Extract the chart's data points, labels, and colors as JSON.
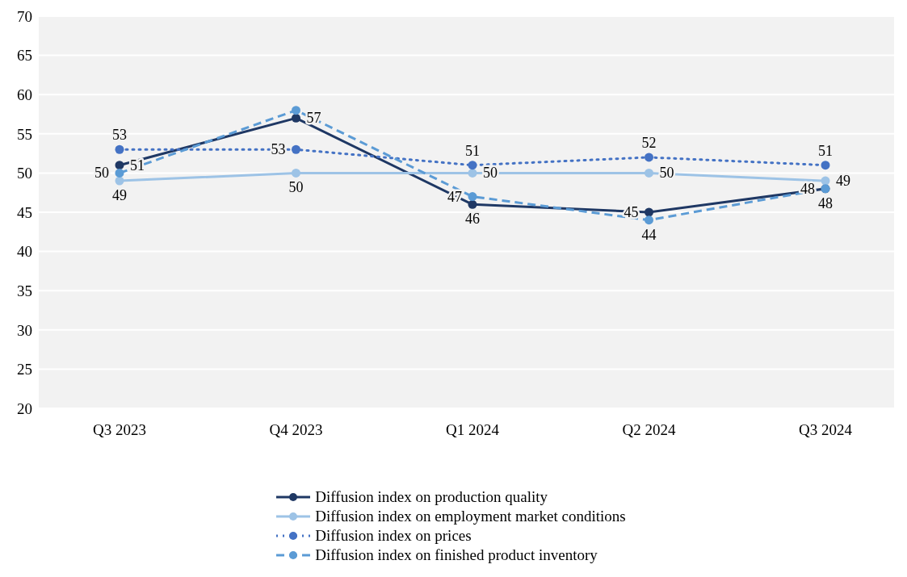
{
  "chart_data": {
    "type": "line",
    "categories": [
      "Q3 2023",
      "Q4 2023",
      "Q1 2024",
      "Q2 2024",
      "Q3 2024"
    ],
    "ylim": [
      20,
      70
    ],
    "yticks": [
      20,
      25,
      30,
      35,
      40,
      45,
      50,
      55,
      60,
      65,
      70
    ],
    "grid": "y",
    "legend": "bottom",
    "marker": "circle",
    "series": [
      {
        "name": "Diffusion index on production quality",
        "color": "#1f3864",
        "line_style": "solid",
        "values": [
          51,
          57,
          46,
          45,
          48
        ],
        "value_labels": [
          "51",
          "57",
          "46",
          "45",
          "48"
        ]
      },
      {
        "name": "Diffusion index on employment market conditions",
        "color": "#9dc3e6",
        "line_style": "solid",
        "values": [
          49,
          50,
          50,
          50,
          49
        ],
        "value_labels": [
          "49",
          "50",
          "50",
          "50",
          "49"
        ]
      },
      {
        "name": "Diffusion index on prices",
        "color": "#4472c4",
        "line_style": "dotted",
        "values": [
          53,
          53,
          51,
          52,
          51
        ],
        "value_labels": [
          "53",
          "53",
          "51",
          "52",
          "51"
        ]
      },
      {
        "name": "Diffusion index on finished product inventory",
        "color": "#5b9bd5",
        "line_style": "dashed",
        "values": [
          50,
          58,
          47,
          44,
          48
        ],
        "value_labels": [
          "50",
          null,
          "47",
          "44",
          "48"
        ]
      }
    ]
  }
}
